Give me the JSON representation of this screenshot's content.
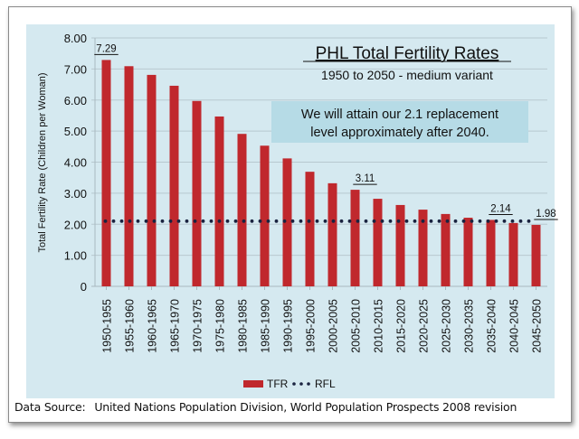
{
  "chart_data": {
    "type": "bar",
    "title": "PHL Total Fertility Rates",
    "subtitle": "1950 to 2050 - medium variant",
    "annotation": "We will attain our 2.1 replacement level approximately after 2040.",
    "annotation_lines": [
      "We will attain our 2.1 replacement",
      "level approximately after 2040."
    ],
    "xlabel": "",
    "ylabel": "Total Fertility Rate (Children per Woman)",
    "ylim": [
      0,
      8
    ],
    "yticks": [
      0,
      1,
      2,
      3,
      4,
      5,
      6,
      7,
      8
    ],
    "ytick_labels": [
      "0",
      "1.00",
      "2.00",
      "3.00",
      "4.00",
      "5.00",
      "6.00",
      "7.00",
      "8.00"
    ],
    "grid": true,
    "legend_position": "bottom",
    "categories": [
      "1950-1955",
      "1955-1960",
      "1960-1965",
      "1965-1970",
      "1970-1975",
      "1975-1980",
      "1980-1985",
      "1985-1990",
      "1990-1995",
      "1995-2000",
      "2000-2005",
      "2005-2010",
      "2010-2015",
      "2015-2020",
      "2020-2025",
      "2025-2030",
      "2030-2035",
      "2035-2040",
      "2040-2045",
      "2045-2050"
    ],
    "series": [
      {
        "name": "TFR",
        "type": "bar",
        "color": "#c0282d",
        "values": [
          7.29,
          7.09,
          6.81,
          6.46,
          5.97,
          5.47,
          4.91,
          4.53,
          4.12,
          3.69,
          3.32,
          3.11,
          2.82,
          2.62,
          2.47,
          2.33,
          2.21,
          2.14,
          2.04,
          1.98
        ]
      },
      {
        "name": "RFL",
        "type": "dotted-line",
        "color": "#1a2340",
        "values": [
          2.1,
          2.1,
          2.1,
          2.1,
          2.1,
          2.1,
          2.1,
          2.1,
          2.1,
          2.1,
          2.1,
          2.1,
          2.1,
          2.1,
          2.1,
          2.1,
          2.1,
          2.1,
          2.1,
          2.1
        ]
      }
    ],
    "data_labels": [
      {
        "category": "1950-1955",
        "text": "7.29"
      },
      {
        "category": "2005-2010",
        "text": "3.11"
      },
      {
        "category": "2035-2040",
        "text": "2.14"
      },
      {
        "category": "2045-2050",
        "text": "1.98"
      }
    ]
  },
  "source": {
    "label": "Data Source:",
    "text": "United Nations Population Division, World Population Prospects 2008 revision"
  },
  "colors": {
    "chart_background": "#d5e9f0",
    "annotation_background": "#b6dbe6",
    "bar": "#c0282d",
    "rfl": "#1a2340"
  }
}
